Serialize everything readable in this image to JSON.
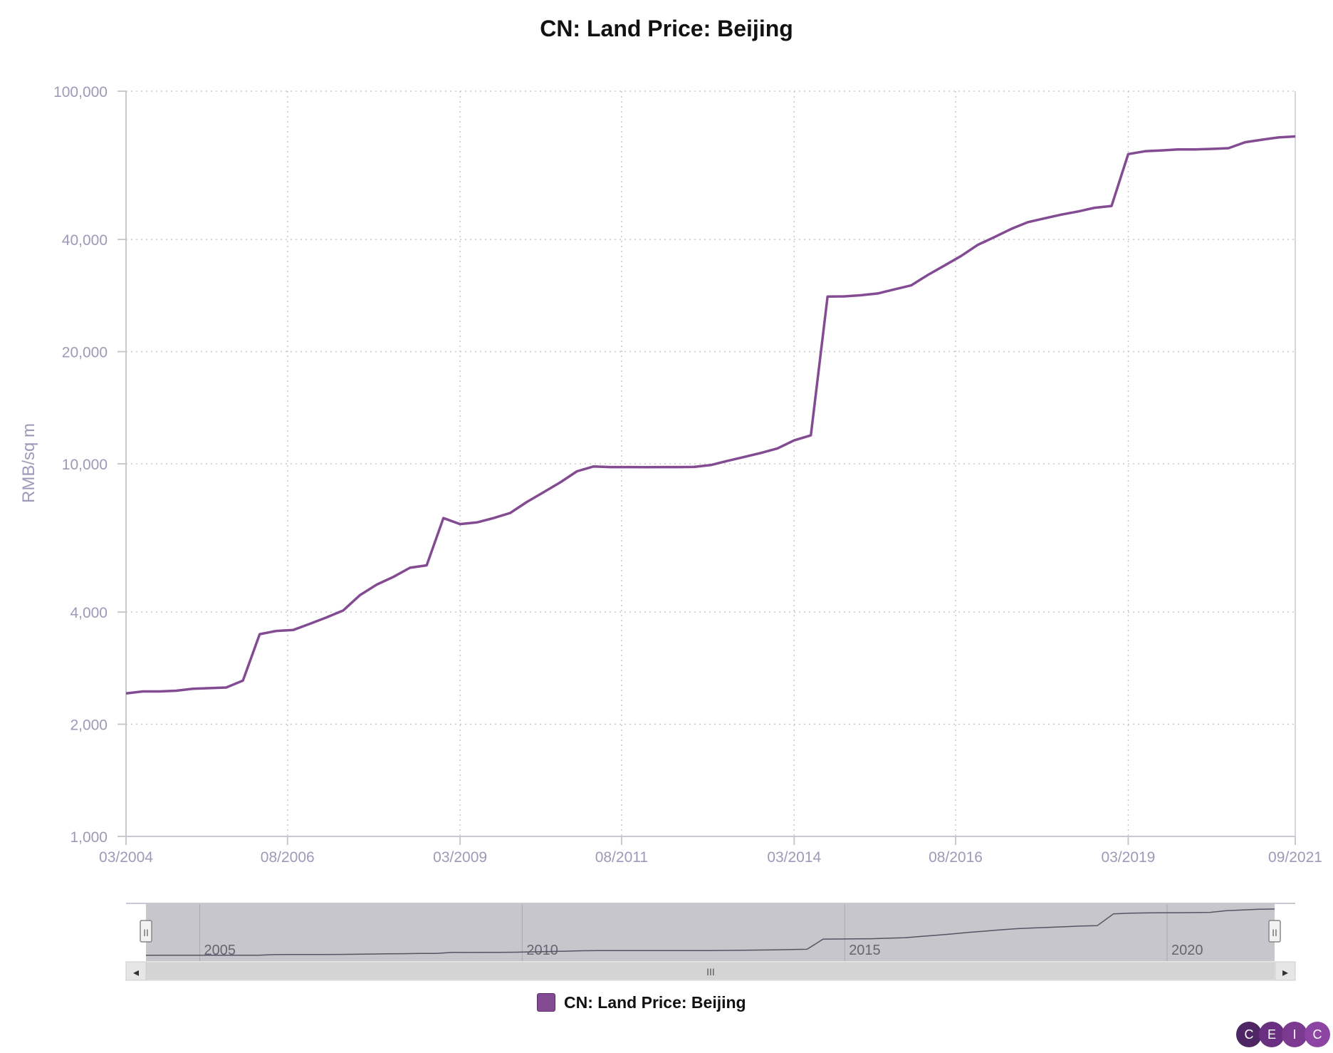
{
  "chart_data": {
    "type": "line",
    "title": "CN: Land Price: Beijing",
    "ylabel": "RMB/sq m",
    "xlabel": "",
    "y_scale": "log",
    "ylim": [
      1000,
      100000
    ],
    "xlim": [
      "2004-03",
      "2021-09"
    ],
    "y_ticks": [
      1000,
      2000,
      4000,
      10000,
      20000,
      40000,
      100000
    ],
    "y_tick_labels": [
      "1,000",
      "2,000",
      "4,000",
      "10,000",
      "20,000",
      "40,000",
      "100,000"
    ],
    "x_ticks": [
      "2004-03",
      "2006-08",
      "2009-03",
      "2011-08",
      "2014-03",
      "2016-08",
      "2019-03",
      "2021-09"
    ],
    "x_tick_labels": [
      "03/2004",
      "08/2006",
      "03/2009",
      "08/2011",
      "03/2014",
      "08/2016",
      "03/2019",
      "09/2021"
    ],
    "grid": true,
    "legend_position": "bottom",
    "series": [
      {
        "name": "CN: Land Price: Beijing",
        "color": "#834b91",
        "points": [
          [
            "2004-03",
            2420
          ],
          [
            "2004-06",
            2450
          ],
          [
            "2004-09",
            2450
          ],
          [
            "2004-12",
            2460
          ],
          [
            "2005-03",
            2490
          ],
          [
            "2005-06",
            2500
          ],
          [
            "2005-09",
            2510
          ],
          [
            "2005-12",
            2620
          ],
          [
            "2006-03",
            3490
          ],
          [
            "2006-06",
            3560
          ],
          [
            "2006-09",
            3580
          ],
          [
            "2006-12",
            3720
          ],
          [
            "2007-03",
            3870
          ],
          [
            "2007-06",
            4040
          ],
          [
            "2007-09",
            4440
          ],
          [
            "2007-12",
            4740
          ],
          [
            "2008-03",
            4970
          ],
          [
            "2008-06",
            5260
          ],
          [
            "2008-09",
            5340
          ],
          [
            "2008-12",
            7150
          ],
          [
            "2009-03",
            6890
          ],
          [
            "2009-06",
            6960
          ],
          [
            "2009-09",
            7150
          ],
          [
            "2009-12",
            7380
          ],
          [
            "2010-03",
            7900
          ],
          [
            "2010-06",
            8390
          ],
          [
            "2010-09",
            8920
          ],
          [
            "2010-12",
            9550
          ],
          [
            "2011-03",
            9840
          ],
          [
            "2011-06",
            9800
          ],
          [
            "2011-09",
            9800
          ],
          [
            "2011-12",
            9790
          ],
          [
            "2012-03",
            9800
          ],
          [
            "2012-06",
            9800
          ],
          [
            "2012-09",
            9810
          ],
          [
            "2012-12",
            9920
          ],
          [
            "2013-03",
            10180
          ],
          [
            "2013-06",
            10430
          ],
          [
            "2013-09",
            10690
          ],
          [
            "2013-12",
            11000
          ],
          [
            "2014-03",
            11560
          ],
          [
            "2014-06",
            11920
          ],
          [
            "2014-09",
            28100
          ],
          [
            "2014-12",
            28140
          ],
          [
            "2015-03",
            28340
          ],
          [
            "2015-06",
            28650
          ],
          [
            "2015-09",
            29380
          ],
          [
            "2015-12",
            30120
          ],
          [
            "2016-03",
            32110
          ],
          [
            "2016-06",
            34050
          ],
          [
            "2016-09",
            36130
          ],
          [
            "2016-12",
            38700
          ],
          [
            "2017-03",
            40600
          ],
          [
            "2017-06",
            42700
          ],
          [
            "2017-09",
            44530
          ],
          [
            "2017-12",
            45600
          ],
          [
            "2018-03",
            46650
          ],
          [
            "2018-06",
            47560
          ],
          [
            "2018-09",
            48660
          ],
          [
            "2018-12",
            49200
          ],
          [
            "2019-03",
            67800
          ],
          [
            "2019-06",
            68990
          ],
          [
            "2019-09",
            69370
          ],
          [
            "2019-12",
            69780
          ],
          [
            "2020-03",
            69800
          ],
          [
            "2020-06",
            70000
          ],
          [
            "2020-09",
            70320
          ],
          [
            "2020-12",
            72960
          ],
          [
            "2021-03",
            74100
          ],
          [
            "2021-06",
            75150
          ],
          [
            "2021-09",
            75600
          ]
        ]
      }
    ],
    "navigator": {
      "year_labels": [
        "2005",
        "2010",
        "2015",
        "2020"
      ],
      "scroll_grip": "III",
      "handle_grip": "II",
      "left_arrow": "◂",
      "right_arrow": "▸"
    }
  },
  "legend": {
    "label": "CN: Land Price: Beijing",
    "color": "#834b91"
  },
  "logo": {
    "letters": [
      "C",
      "E",
      "I",
      "C"
    ],
    "colors": [
      "#4d2663",
      "#6a2f80",
      "#7b3990",
      "#8d45a3"
    ]
  },
  "colors": {
    "axis_text": "#9c9ab8",
    "grid": "#c8c8c8",
    "axis_line": "#c8c8d0",
    "navigator_fill": "#c6c6cc",
    "navigator_line": "#555566",
    "scrollbar": "#d4d4d4"
  }
}
